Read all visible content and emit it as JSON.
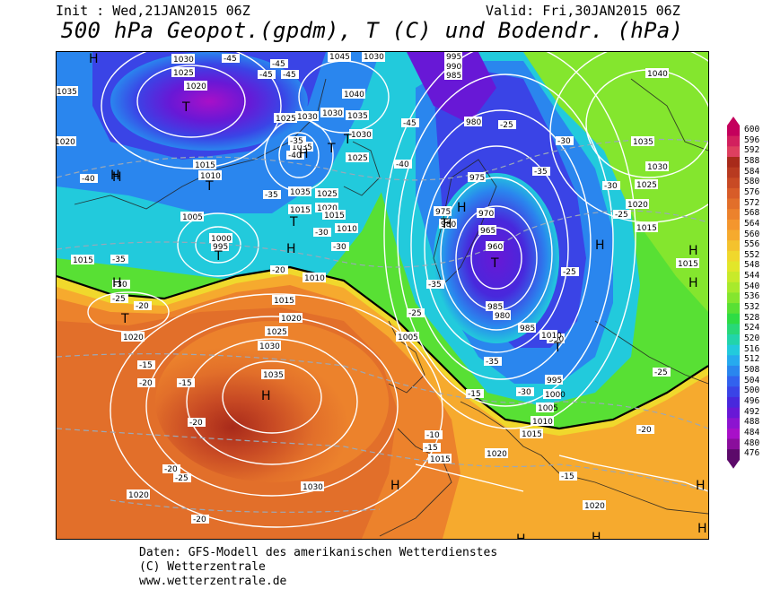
{
  "header": {
    "init": "Init : Wed,21JAN2015 06Z",
    "valid": "Valid: Fri,30JAN2015 06Z",
    "title": "500 hPa Geopot.(gpdm), T (C) und Bodendr. (hPa)"
  },
  "footer": {
    "line1": "Daten: GFS-Modell des amerikanischen Wetterdienstes",
    "line2": "(C) Wetterzentrale",
    "line3": "www.wetterzentrale.de"
  },
  "legend": {
    "values": [
      "600",
      "596",
      "592",
      "588",
      "584",
      "580",
      "576",
      "572",
      "568",
      "564",
      "560",
      "556",
      "552",
      "548",
      "544",
      "540",
      "536",
      "532",
      "528",
      "524",
      "520",
      "516",
      "512",
      "508",
      "504",
      "500",
      "496",
      "492",
      "488",
      "484",
      "480",
      "476"
    ],
    "colors": [
      "#c4005c",
      "#d2205e",
      "#de3f5f",
      "#a82a1a",
      "#b83a20",
      "#c84a24",
      "#d85c28",
      "#e26f2a",
      "#ec822c",
      "#f4962e",
      "#f6aa2e",
      "#f4c22e",
      "#f0d82c",
      "#e2e62a",
      "#c8ea2a",
      "#a8ea2c",
      "#84e62e",
      "#58e034",
      "#2edc44",
      "#28d878",
      "#22d4aa",
      "#22cadc",
      "#26aaee",
      "#2a86ee",
      "#3262ee",
      "#3a44e6",
      "#4828dc",
      "#6818d6",
      "#8c14d0",
      "#a810c8",
      "#8a0e9c",
      "#5c0a6a"
    ]
  },
  "map_labels": {
    "highs": [
      "H",
      "H",
      "H",
      "H",
      "H",
      "H",
      "H",
      "H",
      "H",
      "H",
      "H",
      "H",
      "H",
      "H",
      "H",
      "H",
      "H"
    ],
    "lows": [
      "T",
      "T",
      "T",
      "T",
      "T",
      "T",
      "T",
      "T",
      "T",
      "T"
    ],
    "pressure": [
      "1030",
      "1025",
      "1020",
      "1035",
      "1020",
      "1015",
      "1010",
      "1005",
      "1000",
      "995",
      "1015",
      "1015",
      "1010",
      "1030",
      "1025",
      "1035",
      "1030",
      "1025",
      "1045",
      "1040",
      "1035",
      "1030",
      "1025",
      "1020",
      "1015",
      "1010",
      "1015",
      "1020",
      "1025",
      "1030",
      "1035",
      "1020",
      "1030",
      "1020",
      "995",
      "990",
      "985",
      "980",
      "975",
      "970",
      "965",
      "960",
      "975",
      "980",
      "985",
      "980",
      "985",
      "990",
      "995",
      "1000",
      "1005",
      "1010",
      "1015",
      "1020",
      "1015",
      "1005",
      "1010",
      "1020",
      "1035",
      "1040",
      "1030",
      "1025",
      "1020",
      "1015",
      "1015",
      "1035",
      "1030"
    ],
    "temps": [
      "-45",
      "-45",
      "-45",
      "-45",
      "-40",
      "-40",
      "-35",
      "-30",
      "-30",
      "-25",
      "-25",
      "-20",
      "-15",
      "-15",
      "-15",
      "-20",
      "-20",
      "-25",
      "-20",
      "-35",
      "-35",
      "-30",
      "-25",
      "-20",
      "-15",
      "-15",
      "-10",
      "-30",
      "-30",
      "-25",
      "-25",
      "-20",
      "-25",
      "-30",
      "-35",
      "-40",
      "-45",
      "-35",
      "-20",
      "-35"
    ]
  }
}
